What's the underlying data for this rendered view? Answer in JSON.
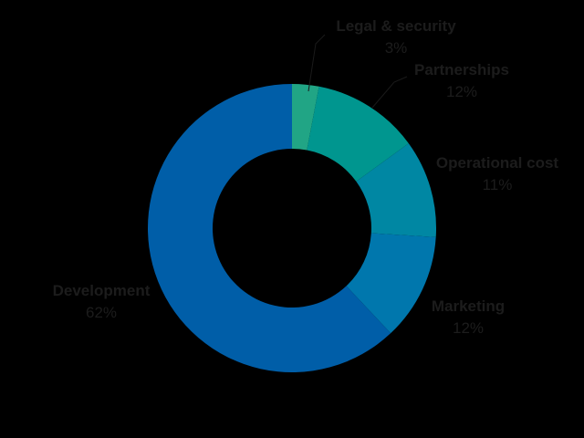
{
  "chart_data": {
    "type": "pie",
    "variant": "donut",
    "title": "",
    "slices": [
      {
        "label": "Legal & security",
        "value": 3,
        "value_label": "3%",
        "color": "#21a585"
      },
      {
        "label": "Partnerships",
        "value": 12,
        "value_label": "12%",
        "color": "#00968f"
      },
      {
        "label": "Operational cost",
        "value": 11,
        "value_label": "11%",
        "color": "#0087a3"
      },
      {
        "label": "Marketing",
        "value": 12,
        "value_label": "12%",
        "color": "#0077ad"
      },
      {
        "label": "Development",
        "value": 62,
        "value_label": "62%",
        "color": "#005ea8"
      }
    ],
    "legend": "none",
    "start_angle": "top",
    "direction": "clockwise"
  },
  "colors": {
    "background": "#000000",
    "label_text": "#1c1c1c"
  }
}
